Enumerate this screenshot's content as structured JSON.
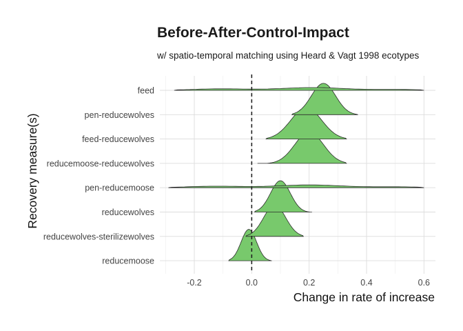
{
  "chart_data": {
    "type": "ridgeline",
    "title": "Before-After-Control-Impact",
    "subtitle": "w/ spatio-temporal matching using Heard & Vagt 1998 ecotypes",
    "xlabel": "Change in rate of increase",
    "ylabel": "Recovery measure(s)",
    "xlim": [
      -0.32,
      0.64
    ],
    "x_ticks": [
      "-0.2",
      "0.0",
      "0.2",
      "0.4",
      "0.6"
    ],
    "reference_line_x": 0,
    "grid": true,
    "fill_color": "#78c96c",
    "series": [
      {
        "name": "feed",
        "range": [
          -0.27,
          0.6
        ],
        "shape": "flat"
      },
      {
        "name": "pen-reducewolves",
        "range": [
          0.14,
          0.37
        ],
        "peak": 0.25
      },
      {
        "name": "feed-reducewolves",
        "range": [
          0.05,
          0.33
        ],
        "peak": 0.19
      },
      {
        "name": "reducemoose-reducewolves",
        "range": [
          0.02,
          0.33
        ],
        "peak": 0.2
      },
      {
        "name": "pen-reducemoose",
        "range": [
          -0.29,
          0.6
        ],
        "shape": "flat"
      },
      {
        "name": "reducewolves",
        "range": [
          0.01,
          0.21
        ],
        "peak": 0.1
      },
      {
        "name": "reducewolves-sterilizewolves",
        "range": [
          -0.02,
          0.18
        ],
        "peak": 0.08
      },
      {
        "name": "reducemoose",
        "range": [
          -0.08,
          0.07
        ],
        "peak": -0.01
      }
    ]
  }
}
